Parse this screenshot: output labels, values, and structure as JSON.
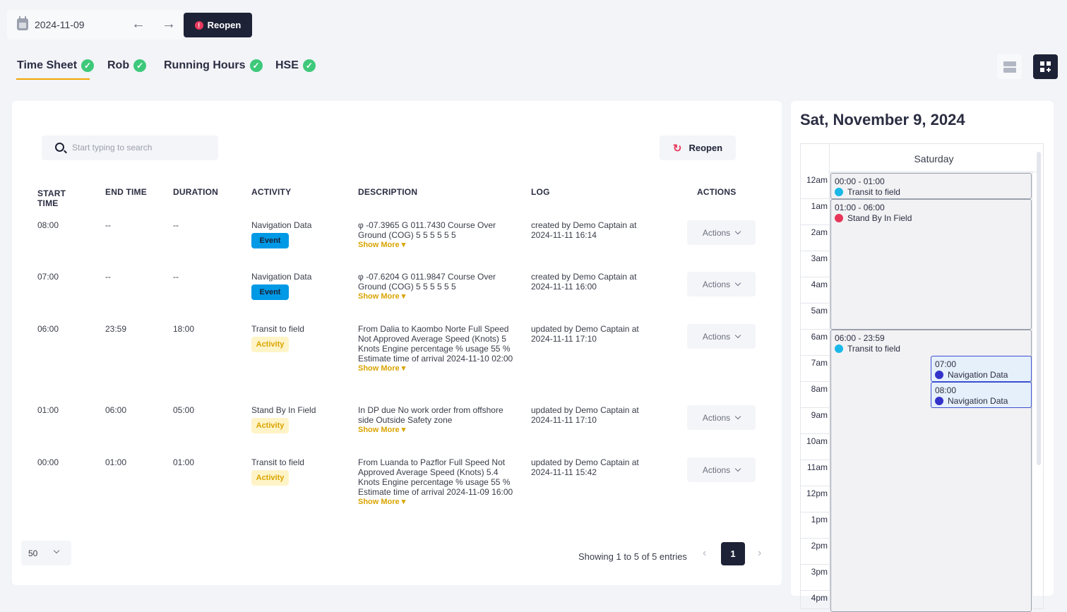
{
  "topbar": {
    "date": "2024-11-09",
    "reopen_label": "Reopen"
  },
  "tabs": [
    {
      "label": "Time Sheet",
      "active": true
    },
    {
      "label": "Rob"
    },
    {
      "label": "Running Hours"
    },
    {
      "label": "HSE"
    }
  ],
  "toolbar": {
    "search_placeholder": "Start typing to search",
    "reopen_label": "Reopen"
  },
  "table": {
    "headers": {
      "start": "START\nTIME",
      "end": "END TIME",
      "duration": "DURATION",
      "activity": "ACTIVITY",
      "description": "DESCRIPTION",
      "log": "LOG",
      "actions": "ACTIONS"
    },
    "show_more": "Show More",
    "actions_label": "Actions",
    "rows": [
      {
        "start": "08:00",
        "end": "--",
        "duration": "--",
        "activity": "Navigation Data",
        "badge": "Event",
        "description": "φ -07.3965 G 011.7430 Course Over Ground (COG) 5 5 5 5 5 5",
        "log": "created by Demo Captain at 2024-11-11 16:14"
      },
      {
        "start": "07:00",
        "end": "--",
        "duration": "--",
        "activity": "Navigation Data",
        "badge": "Event",
        "description": "φ -07.6204 G 011.9847 Course Over Ground (COG) 5 5 5 5 5 5",
        "log": "created by Demo Captain at 2024-11-11 16:00"
      },
      {
        "start": "06:00",
        "end": "23:59",
        "duration": "18:00",
        "activity": "Transit to field",
        "badge": "Activity",
        "description": "From Dalia to Kaombo Norte Full Speed Not Approved Average Speed (Knots) 5 Knots Engine percentage % usage 55 % Estimate time of arrival 2024-11-10 02:00",
        "log": "updated by Demo Captain at 2024-11-11 17:10"
      },
      {
        "start": "01:00",
        "end": "06:00",
        "duration": "05:00",
        "activity": "Stand By In Field",
        "badge": "Activity",
        "description": "In DP due No work order from offshore side Outside Safety zone",
        "log": "updated by Demo Captain at 2024-11-11 17:10"
      },
      {
        "start": "00:00",
        "end": "01:00",
        "duration": "01:00",
        "activity": "Transit to field",
        "badge": "Activity",
        "description": "From Luanda to Pazflor Full Speed Not Approved Average Speed (Knots) 5.4 Knots Engine percentage % usage 55 % Estimate time of arrival 2024-11-09 16:00",
        "log": "updated by Demo Captain at 2024-11-11 15:42"
      }
    ]
  },
  "footer": {
    "per_page": "50",
    "showing": "Showing 1 to 5 of 5 entries",
    "page": "1"
  },
  "calendar": {
    "title": "Sat, November 9, 2024",
    "day": "Saturday",
    "hours": [
      "12am",
      "1am",
      "2am",
      "3am",
      "4am",
      "5am",
      "6am",
      "7am",
      "8am",
      "9am",
      "10am",
      "11am",
      "12pm",
      "1pm",
      "2pm",
      "3pm",
      "4pm"
    ],
    "events": [
      {
        "time": "00:00 - 01:00",
        "label": "Transit to field",
        "color": "#1ab8e8"
      },
      {
        "time": "01:00 - 06:00",
        "label": "Stand By In Field",
        "color": "#e8365a"
      },
      {
        "time": "06:00 - 23:59",
        "label": "Transit to field",
        "color": "#1ab8e8"
      },
      {
        "time": "07:00",
        "label": "Navigation Data",
        "color": "#3333c9"
      },
      {
        "time": "08:00",
        "label": "Navigation Data",
        "color": "#3333c9"
      }
    ]
  }
}
